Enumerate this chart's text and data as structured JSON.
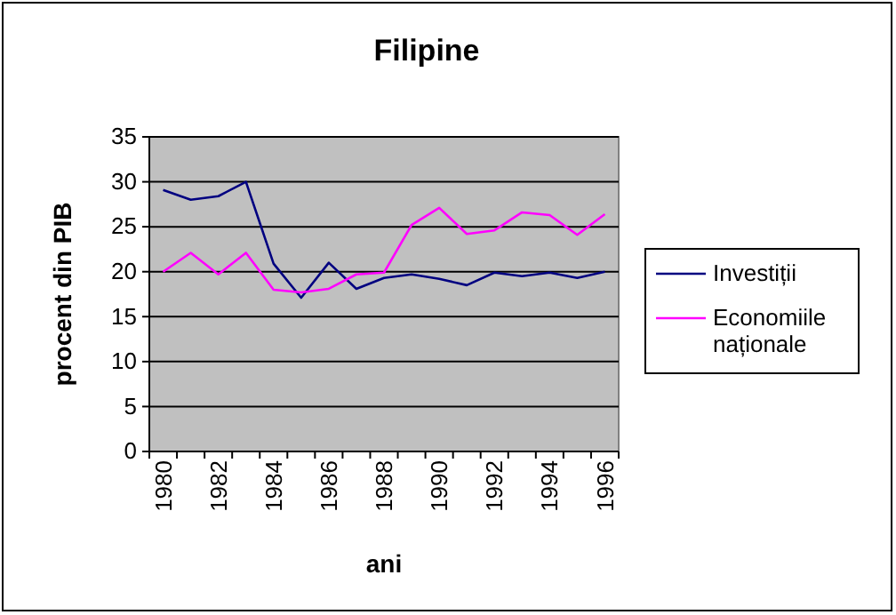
{
  "chart_data": {
    "type": "line",
    "title": "Filipine",
    "xlabel": "ani",
    "ylabel": "procent din PIB",
    "categories": [
      "1980",
      null,
      "1982",
      null,
      "1984",
      null,
      "1986",
      null,
      "1988",
      null,
      "1990",
      null,
      "1992",
      null,
      "1994",
      null,
      "1996"
    ],
    "series": [
      {
        "name": "Investiții",
        "color": "#000080",
        "values": [
          29.1,
          28,
          28.4,
          30,
          20.9,
          17.1,
          21,
          18.1,
          19.3,
          19.7,
          19.2,
          18.5,
          19.9,
          19.5,
          19.9,
          19.3,
          20
        ]
      },
      {
        "name": "Economiile naționale",
        "color": "#ff00ff",
        "values": [
          20,
          22.1,
          19.7,
          22.1,
          18,
          17.7,
          18.1,
          19.7,
          19.9,
          25.2,
          27.1,
          24.2,
          24.6,
          26.6,
          26.3,
          24.1,
          26.4
        ]
      }
    ],
    "ylim": [
      0,
      35
    ],
    "yticks": [
      0,
      5,
      10,
      15,
      20,
      25,
      30,
      35
    ],
    "grid": "y",
    "legend": "right",
    "marker": "none",
    "line_style": "solid"
  }
}
